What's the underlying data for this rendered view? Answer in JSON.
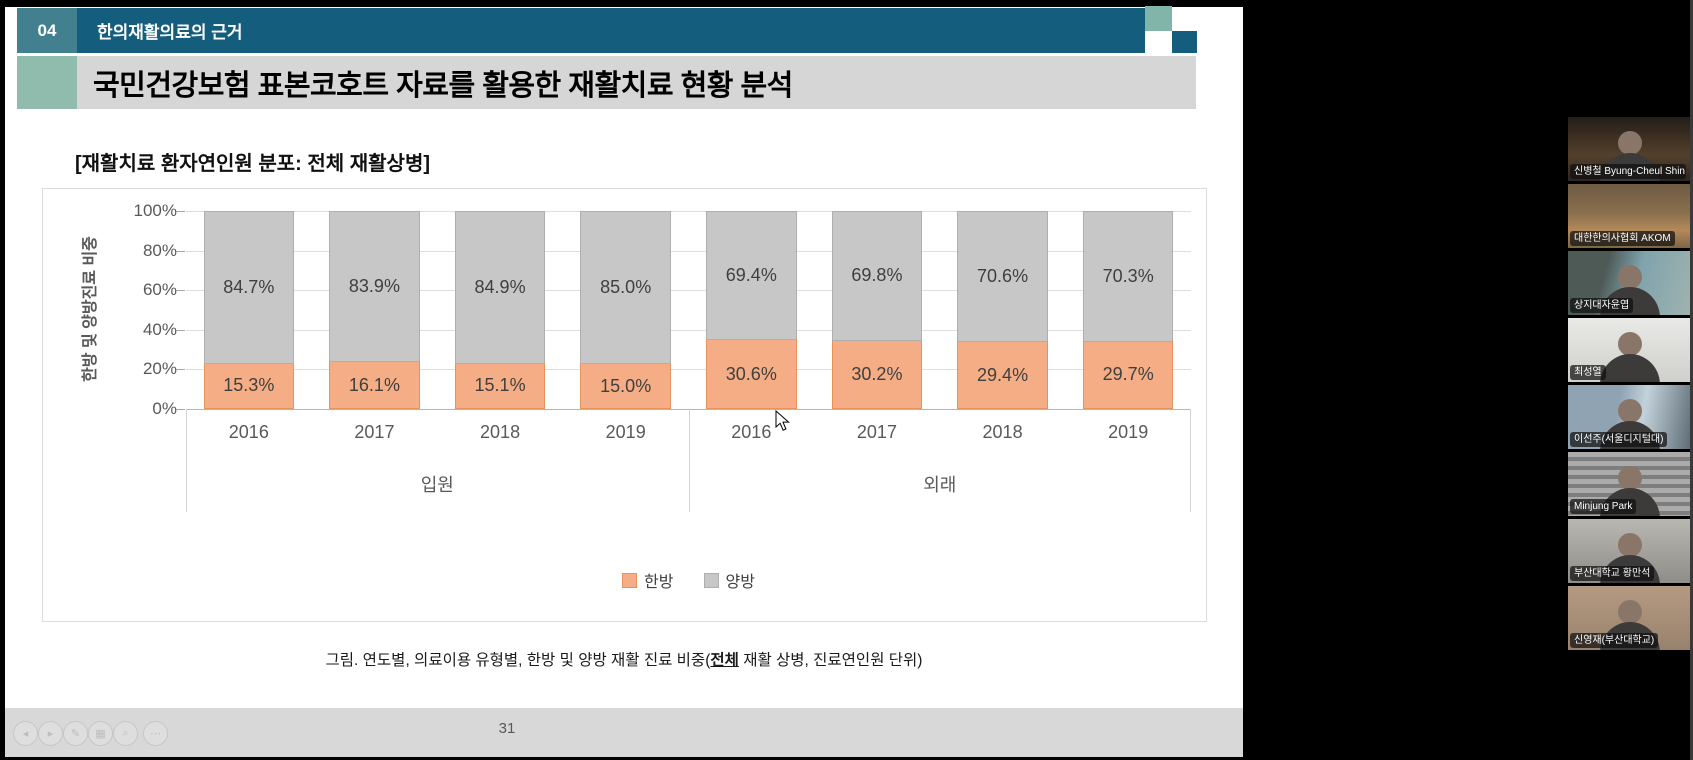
{
  "slide": {
    "section_number": "04",
    "section_title": "한의재활의료의 근거",
    "title": "국민건강보험 표본코호트 자료를 활용한 재활치료 현황 분석",
    "chart_heading": "[재활치료 환자연인원 분포: 전체 재활상병]",
    "caption": {
      "prefix": "그림. 연도별, 의료이용 유형별, 한방 및 양방 재활 진료 비중(",
      "emphasized": "전체",
      "suffix": " 재활 상병, 진료연인원 단위)"
    },
    "page_number": "31"
  },
  "chart_data": {
    "type": "bar",
    "variant": "100%-stacked-column",
    "title": "[재활치료 환자연인원 분포: 전체 재활상병]",
    "ylabel": "한방 및 양방진료 비중",
    "ylim": [
      0,
      100
    ],
    "y_tick_labels": [
      "100%",
      "80%",
      "60%",
      "40%",
      "20%",
      "0%"
    ],
    "grid": true,
    "legend_position": "bottom",
    "groups": [
      {
        "label": "입원",
        "years": [
          "2016",
          "2017",
          "2018",
          "2019"
        ]
      },
      {
        "label": "외래",
        "years": [
          "2016",
          "2017",
          "2018",
          "2019"
        ]
      }
    ],
    "series": [
      {
        "name": "한방",
        "color": "#f5ad85",
        "border": "#e8935c",
        "values": {
          "입원": [
            15.3,
            16.1,
            15.1,
            15.0
          ],
          "외래": [
            30.6,
            30.2,
            29.4,
            29.7
          ]
        }
      },
      {
        "name": "양방",
        "color": "#c7c7c7",
        "border": "#aeaeae",
        "values": {
          "입원": [
            84.7,
            83.9,
            84.9,
            85.0
          ],
          "외래": [
            69.4,
            69.8,
            70.6,
            70.3
          ]
        }
      }
    ],
    "data_label_suffix": "%"
  },
  "toolbar": {
    "icons": [
      {
        "name": "previous-slide",
        "glyph": "◂"
      },
      {
        "name": "next-slide",
        "glyph": "▸"
      },
      {
        "name": "pen-tool",
        "glyph": "✎"
      },
      {
        "name": "slide-navigator",
        "glyph": "▦"
      },
      {
        "name": "zoom-tool",
        "glyph": "⌕"
      },
      {
        "name": "more-options",
        "glyph": "⋯"
      }
    ]
  },
  "participants": [
    {
      "label": "신병철 Byung-Cheul Shin",
      "scene": "bookshelf-office"
    },
    {
      "label": "대한한의사협회 AKOM",
      "scene": "meeting-room"
    },
    {
      "label": "상지대자윤엽",
      "scene": "clinic-room"
    },
    {
      "label": "최성열",
      "scene": "white-shelves"
    },
    {
      "label": "이선주(서울디지털대)",
      "scene": "city-window"
    },
    {
      "label": "Minjung Park",
      "scene": "window-blinds"
    },
    {
      "label": "부산대학교 황만석",
      "scene": "office-gray"
    },
    {
      "label": "신영재(부산대학교)",
      "scene": "warm-room"
    }
  ],
  "colors": {
    "header_teal": "#155d7d",
    "header_teal_light": "#43808f",
    "accent_green": "#90bcae",
    "title_bar_gray": "#d6d6d6",
    "hanbang_orange": "#f5ad85",
    "yangbang_gray": "#c7c7c7"
  }
}
